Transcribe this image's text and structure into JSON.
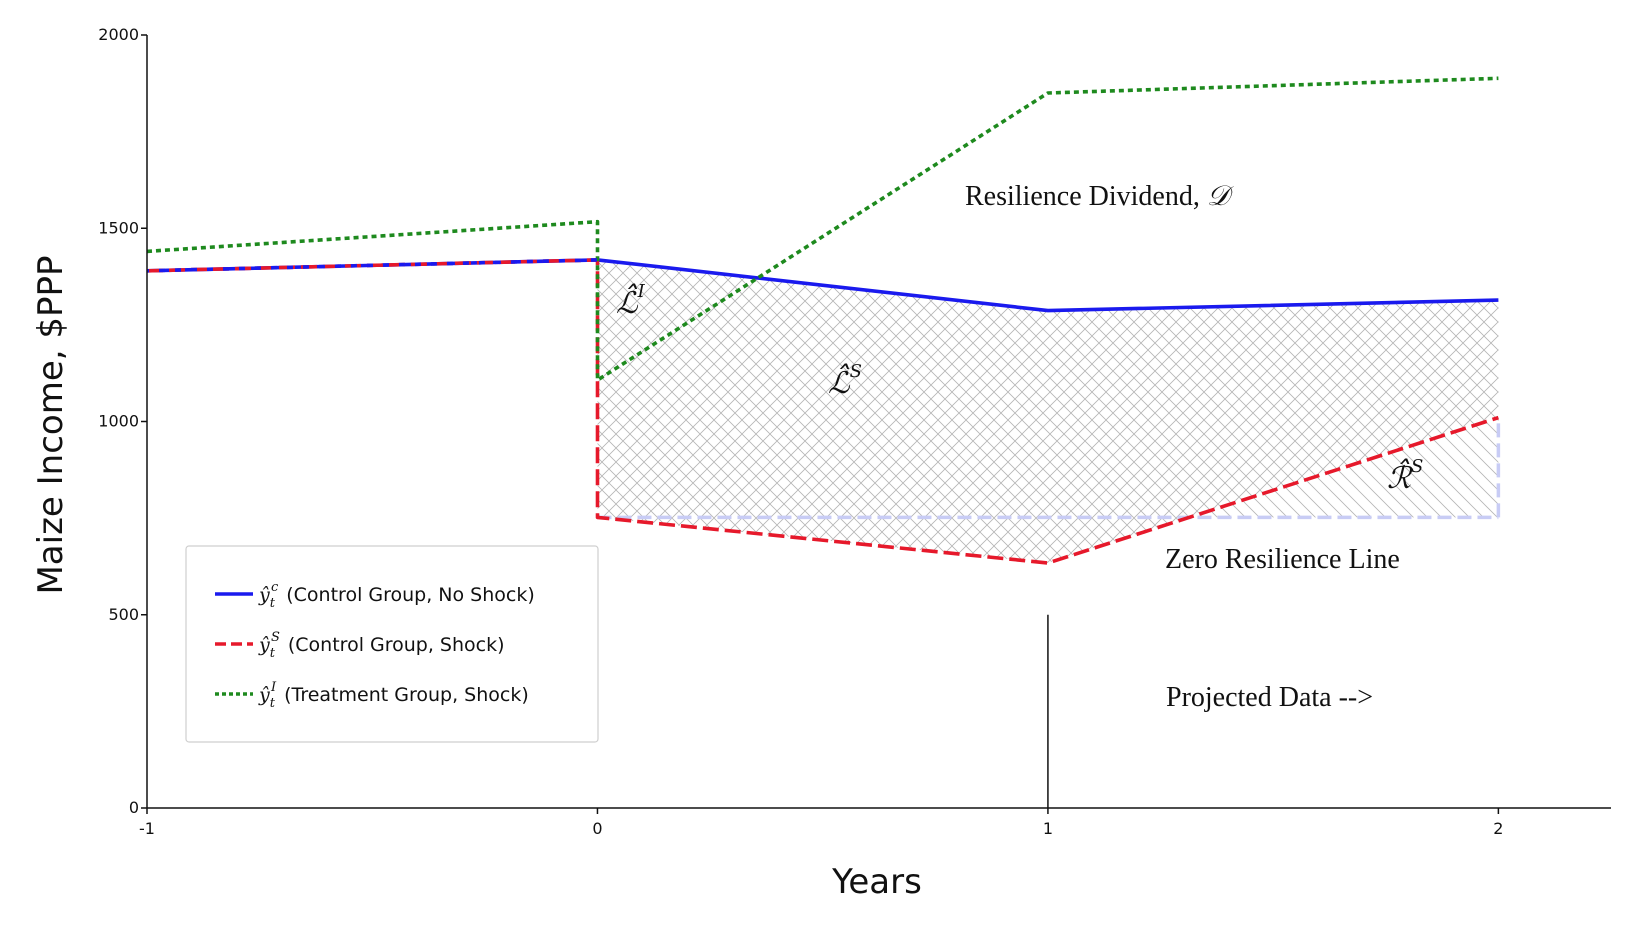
{
  "chart_data": {
    "type": "line",
    "xlabel": "Years",
    "ylabel": "Maize Income, $PPP",
    "xlim": [
      -1,
      2.25
    ],
    "ylim": [
      0,
      2000
    ],
    "x_ticks": [
      -1,
      0,
      1,
      2
    ],
    "x_tick_labels": [
      "-1",
      "0",
      "1",
      "2"
    ],
    "y_ticks": [
      0,
      500,
      1000,
      1500,
      2000
    ],
    "y_tick_labels": [
      "0",
      "500",
      "1000",
      "1500",
      "2000"
    ],
    "grid": false,
    "legend_position": "bottom-left",
    "series": [
      {
        "key": "control_no_shock",
        "legend_math": "ŷ",
        "legend_sub": "t",
        "legend_sup": "c",
        "legend_text": "(Control Group, No Shock)",
        "color": "#1a1aee",
        "style": "solid",
        "points": [
          [
            -1,
            1390
          ],
          [
            0,
            1418
          ],
          [
            1,
            1287
          ],
          [
            2,
            1314
          ]
        ]
      },
      {
        "key": "control_shock",
        "legend_math": "ŷ",
        "legend_sub": "t",
        "legend_sup": "S",
        "legend_text": "(Control Group, Shock)",
        "color": "#e6192b",
        "style": "dash",
        "points": [
          [
            -1,
            1390
          ],
          [
            0,
            1418
          ],
          [
            0,
            752
          ],
          [
            1,
            634
          ],
          [
            2,
            1010
          ]
        ]
      },
      {
        "key": "treatment_shock",
        "legend_math": "ŷ",
        "legend_sub": "t",
        "legend_sup": "I",
        "legend_text": "(Treatment Group, Shock)",
        "color": "#1e8a1e",
        "style": "dot",
        "points": [
          [
            -1,
            1440
          ],
          [
            0,
            1517
          ],
          [
            0,
            1107
          ],
          [
            1,
            1850
          ],
          [
            2,
            1888
          ]
        ]
      }
    ],
    "zero_resilience_line": {
      "x": [
        0,
        2
      ],
      "y": 752,
      "color": "#c8ccf5"
    },
    "projected_divider_x": 1,
    "projected_divider_y": [
      0,
      500
    ],
    "annotations": {
      "resilience_dividend": "Resilience Dividend, ",
      "resilience_dividend_symbol": "𝒟",
      "zero_resilience_line": "Zero Resilience Line",
      "projected_data": "Projected Data -->",
      "loss_treatment": "ℒ̂",
      "loss_treatment_sup": "I",
      "loss_shock": "ℒ̂",
      "loss_shock_sup": "S",
      "recovery_shock": "ℛ̂",
      "recovery_shock_sup": "S"
    }
  }
}
